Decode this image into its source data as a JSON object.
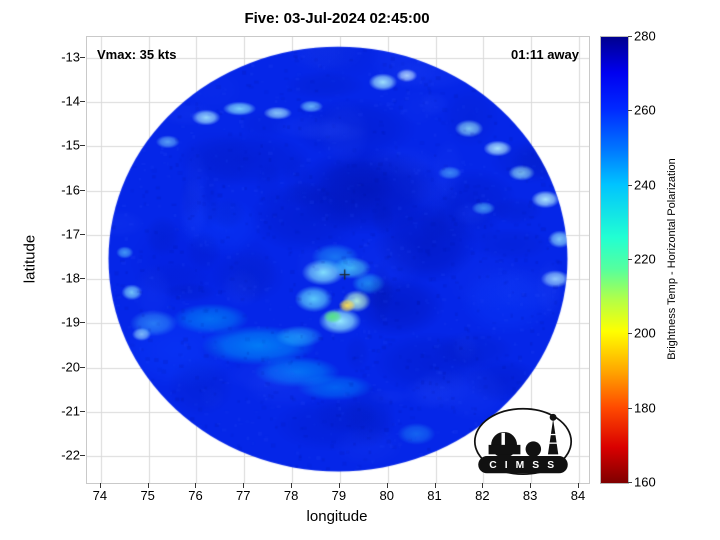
{
  "figure": {
    "title": "Five: 03-Jul-2024 02:45:00",
    "annotation_left": "Vmax: 35 kts",
    "annotation_right": "01:11 away",
    "xlabel": "longitude",
    "ylabel": "latitude"
  },
  "logo": {
    "text": "C I M S S"
  },
  "chart_data": {
    "type": "heatmap",
    "title": "Five: 03-Jul-2024 02:45:00",
    "xlabel": "longitude",
    "ylabel": "latitude",
    "xlim": [
      73.71,
      84.21
    ],
    "ylim": [
      -22.61,
      -12.53
    ],
    "xticks": [
      74,
      75,
      76,
      77,
      78,
      79,
      80,
      81,
      82,
      83,
      84
    ],
    "yticks": [
      -13,
      -14,
      -15,
      -16,
      -17,
      -18,
      -19,
      -20,
      -21,
      -22
    ],
    "grid": true,
    "grid_color": "#d9d9d9",
    "colorbar": {
      "label": "Brightness Temp - Horizontal Polarization",
      "min": 160,
      "max": 280,
      "ticks": [
        160,
        180,
        200,
        220,
        240,
        260,
        280
      ],
      "colormap": "jet-reversed",
      "gradient_stops": [
        [
          "#00008f",
          0
        ],
        [
          "#0000f0",
          8
        ],
        [
          "#0028ff",
          16
        ],
        [
          "#0075ff",
          25
        ],
        [
          "#00c3ff",
          33
        ],
        [
          "#22ffd2",
          45
        ],
        [
          "#55ff9e",
          52
        ],
        [
          "#b4ff46",
          59
        ],
        [
          "#ffff00",
          66
        ],
        [
          "#ffa500",
          75
        ],
        [
          "#ff4b00",
          83
        ],
        [
          "#d90000",
          92
        ],
        [
          "#7f0000",
          100
        ]
      ]
    },
    "swath": {
      "description": "Circular microwave imagery swath of Tropical Cyclone Five, mostly 250-270K (blue) with warm convective core near center",
      "center_lon": 78.96,
      "center_lat": -17.55,
      "radius_deg": 4.8,
      "base_color": "#0526e8",
      "vmax_kts": 35,
      "marker": {
        "lon": 79.1,
        "lat": -17.9
      },
      "noise_colors": [
        "#001090",
        "#3358ff"
      ],
      "marker_color": "#1a2a33",
      "features": [
        [
          79.6,
          -16.0,
          1.6,
          1.0,
          "#000faa",
          0.55
        ],
        [
          80.8,
          -17.2,
          1.1,
          0.9,
          "#000faa",
          0.45
        ],
        [
          78.3,
          -16.6,
          1.2,
          0.8,
          "#0013b4",
          0.35
        ],
        [
          80.2,
          -18.6,
          1.0,
          0.7,
          "#000faa",
          0.4
        ],
        [
          77.0,
          -15.3,
          1.4,
          0.6,
          "#0013b4",
          0.3
        ],
        [
          81.8,
          -16.2,
          0.9,
          0.7,
          "#0013b4",
          0.3
        ],
        [
          79.3,
          -14.6,
          1.3,
          0.7,
          "#0013b4",
          0.3
        ],
        [
          75.8,
          -17.6,
          1.2,
          1.0,
          "#0218d8",
          0.3
        ],
        [
          80.9,
          -19.9,
          1.2,
          0.7,
          "#0013b4",
          0.3
        ],
        [
          78.9,
          -21.3,
          1.3,
          0.6,
          "#0013b4",
          0.25
        ],
        [
          82.4,
          -20.3,
          0.8,
          0.5,
          "#0013b4",
          0.3
        ],
        [
          75.6,
          -19.6,
          1.3,
          0.9,
          "#0a3cff",
          0.5
        ],
        [
          82.5,
          -18.5,
          1.0,
          0.8,
          "#0a3cff",
          0.4
        ],
        [
          76.5,
          -16.8,
          0.9,
          0.7,
          "#0a3cff",
          0.4
        ],
        [
          77.3,
          -19.5,
          1.2,
          0.45,
          "#00a8ff",
          0.65
        ],
        [
          76.3,
          -18.9,
          0.8,
          0.35,
          "#00b4ff",
          0.5
        ],
        [
          78.1,
          -20.1,
          0.9,
          0.35,
          "#00a8ff",
          0.6
        ],
        [
          75.1,
          -19.0,
          0.5,
          0.3,
          "#49c8ff",
          0.5
        ],
        [
          78.9,
          -20.45,
          0.8,
          0.3,
          "#00a8ff",
          0.45
        ],
        [
          78.65,
          -17.85,
          0.45,
          0.3,
          "#8ef2ff",
          0.9
        ],
        [
          79.25,
          -17.75,
          0.4,
          0.25,
          "#50d8ff",
          0.85
        ],
        [
          78.45,
          -18.45,
          0.4,
          0.3,
          "#6ae4ff",
          0.85
        ],
        [
          79.0,
          -18.95,
          0.45,
          0.3,
          "#9df5ff",
          0.95
        ],
        [
          79.35,
          -18.5,
          0.3,
          0.25,
          "#c0ffd8",
          0.9
        ],
        [
          79.15,
          -18.6,
          0.18,
          0.15,
          "#ffe14e",
          0.95
        ],
        [
          78.85,
          -18.85,
          0.2,
          0.15,
          "#54e87e",
          0.9
        ],
        [
          78.15,
          -19.3,
          0.5,
          0.25,
          "#2cc0ff",
          0.6
        ],
        [
          79.6,
          -18.1,
          0.35,
          0.25,
          "#30ccff",
          0.6
        ],
        [
          78.9,
          -17.5,
          0.5,
          0.3,
          "#2cc0ff",
          0.5
        ],
        [
          76.2,
          -14.35,
          0.3,
          0.18,
          "#aef4ff",
          0.9
        ],
        [
          76.9,
          -14.15,
          0.35,
          0.16,
          "#8eecff",
          0.85
        ],
        [
          77.7,
          -14.25,
          0.3,
          0.15,
          "#aef4ff",
          0.8
        ],
        [
          78.4,
          -14.1,
          0.25,
          0.14,
          "#8eecff",
          0.7
        ],
        [
          79.9,
          -13.55,
          0.3,
          0.2,
          "#aef4ff",
          0.9
        ],
        [
          80.4,
          -13.4,
          0.22,
          0.15,
          "#d8faff",
          0.9
        ],
        [
          75.4,
          -14.9,
          0.25,
          0.15,
          "#8eecff",
          0.6
        ],
        [
          81.7,
          -14.6,
          0.3,
          0.2,
          "#9ff0ff",
          0.85
        ],
        [
          82.3,
          -15.05,
          0.3,
          0.18,
          "#baf6ff",
          0.9
        ],
        [
          82.8,
          -15.6,
          0.28,
          0.18,
          "#9ff0ff",
          0.85
        ],
        [
          83.3,
          -16.2,
          0.3,
          0.2,
          "#baf6ff",
          0.9
        ],
        [
          83.6,
          -17.1,
          0.25,
          0.2,
          "#9ff0ff",
          0.8
        ],
        [
          83.5,
          -18.0,
          0.3,
          0.2,
          "#baf6ff",
          0.85
        ],
        [
          82.0,
          -16.4,
          0.25,
          0.15,
          "#6ae0ff",
          0.6
        ],
        [
          81.3,
          -15.6,
          0.25,
          0.15,
          "#6ae0ff",
          0.55
        ],
        [
          74.65,
          -18.3,
          0.22,
          0.18,
          "#8eecff",
          0.8
        ],
        [
          74.85,
          -19.25,
          0.2,
          0.15,
          "#aef4ff",
          0.7
        ],
        [
          74.5,
          -17.4,
          0.18,
          0.14,
          "#6ae0ff",
          0.6
        ],
        [
          80.6,
          -21.5,
          0.4,
          0.25,
          "#2cc0ff",
          0.4
        ]
      ]
    }
  }
}
